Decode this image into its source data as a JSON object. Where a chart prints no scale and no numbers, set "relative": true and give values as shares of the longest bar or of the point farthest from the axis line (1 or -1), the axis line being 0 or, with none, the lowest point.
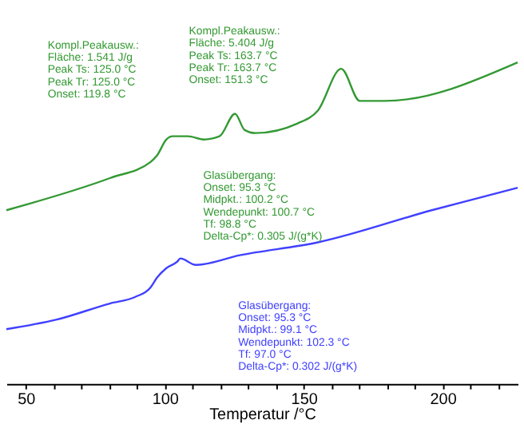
{
  "chart_data": {
    "type": "line",
    "relative": true,
    "xlabel": "Temperatur /°C",
    "xlim": [
      43,
      227
    ],
    "xticks": [
      50,
      {
        "value": 60,
        "label": null
      },
      {
        "value": 70,
        "label": null
      },
      {
        "value": 80,
        "label": null
      },
      {
        "value": 90,
        "label": null
      },
      100,
      {
        "value": 110,
        "label": null
      },
      {
        "value": 120,
        "label": null
      },
      {
        "value": 130,
        "label": null
      },
      {
        "value": 140,
        "label": null
      },
      150,
      {
        "value": 160,
        "label": null
      },
      {
        "value": 170,
        "label": null
      },
      {
        "value": 180,
        "label": null
      },
      {
        "value": 190,
        "label": null
      },
      200,
      {
        "value": 210,
        "label": null
      },
      {
        "value": 220,
        "label": null
      }
    ],
    "grid": false,
    "legend": false,
    "marker": "none",
    "line_style": "solid",
    "series": [
      {
        "color": "#339933",
        "x": [
          43,
          80.3,
          94.9,
          97.2,
          100.6,
          102.8,
          108.4,
          114.0,
          119.7,
          125.3,
          128.7,
          132.6,
          147.8,
          155.1,
          163.5,
          170.2,
          179.2,
          227
        ],
        "values": [
          0.54,
          0.64,
          0.69,
          0.71,
          0.76,
          0.77,
          0.77,
          0.76,
          0.77,
          0.84,
          0.79,
          0.78,
          0.81,
          0.85,
          0.98,
          0.88,
          0.88,
          1.0
        ]
      },
      {
        "color": "#4040ff",
        "x": [
          43,
          61.2,
          80.3,
          89.3,
          94.9,
          97.2,
          100.6,
          104.5,
          105.6,
          111.2,
          127.0,
          155.1,
          196.1,
          227
        ],
        "values": [
          0.17,
          0.2,
          0.25,
          0.27,
          0.3,
          0.33,
          0.36,
          0.38,
          0.39,
          0.37,
          0.4,
          0.44,
          0.54,
          0.61
        ]
      }
    ],
    "annotations": [
      "Kompl.Peakausw.:\nFläche:  1.541 J/g\nPeak Ts:  125.0 °C\nPeak Tr:  125.0 °C\nOnset:  119.8 °C",
      "Kompl.Peakausw.:\nFläche:  5.404 J/g\nPeak Ts:  163.7 °C\nPeak Tr:  163.7 °C\nOnset:  151.3 °C",
      "Glasübergang:\nOnset:  95.3 °C\nMidpkt.:  100.2 °C\nWendepunkt:  100.7 °C\nTf:  98.8 °C\nDelta-Cp*:  0.305 J/(g*K)",
      "Glasübergang:\nOnset:  95.3 °C\nMidpkt.:  99.1 °C\nWendepunkt:  102.3 °C\nTf:  97.0 °C\nDelta-Cp*:  0.302 J/(g*K)"
    ]
  }
}
